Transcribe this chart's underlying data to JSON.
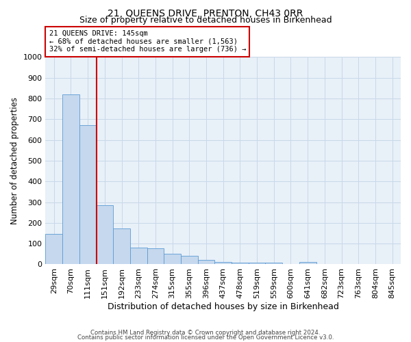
{
  "title": "21, QUEENS DRIVE, PRENTON, CH43 0RR",
  "subtitle": "Size of property relative to detached houses in Birkenhead",
  "xlabel": "Distribution of detached houses by size in Birkenhead",
  "ylabel": "Number of detached properties",
  "categories": [
    "29sqm",
    "70sqm",
    "111sqm",
    "151sqm",
    "192sqm",
    "233sqm",
    "274sqm",
    "315sqm",
    "355sqm",
    "396sqm",
    "437sqm",
    "478sqm",
    "519sqm",
    "559sqm",
    "600sqm",
    "641sqm",
    "682sqm",
    "723sqm",
    "763sqm",
    "804sqm",
    "845sqm"
  ],
  "values": [
    148,
    820,
    670,
    285,
    173,
    80,
    78,
    52,
    40,
    20,
    13,
    8,
    8,
    8,
    0,
    10,
    0,
    0,
    0,
    0,
    0
  ],
  "ylim": [
    0,
    1000
  ],
  "bar_color": "#c5d8ed",
  "bar_edge_color": "#5b9bd5",
  "red_line_x": 2.5,
  "annotation_text": "21 QUEENS DRIVE: 145sqm\n← 68% of detached houses are smaller (1,563)\n32% of semi-detached houses are larger (736) →",
  "annotation_box_edge": "#cc0000",
  "red_line_color": "#cc0000",
  "grid_color": "#c8d8e8",
  "background_color": "#e8f0f8",
  "footer_line1": "Contains HM Land Registry data © Crown copyright and database right 2024.",
  "footer_line2": "Contains public sector information licensed under the Open Government Licence v3.0.",
  "title_fontsize": 10,
  "subtitle_fontsize": 9,
  "xlabel_fontsize": 9,
  "ylabel_fontsize": 8.5,
  "tick_fontsize": 8,
  "annotation_fontsize": 7.5
}
